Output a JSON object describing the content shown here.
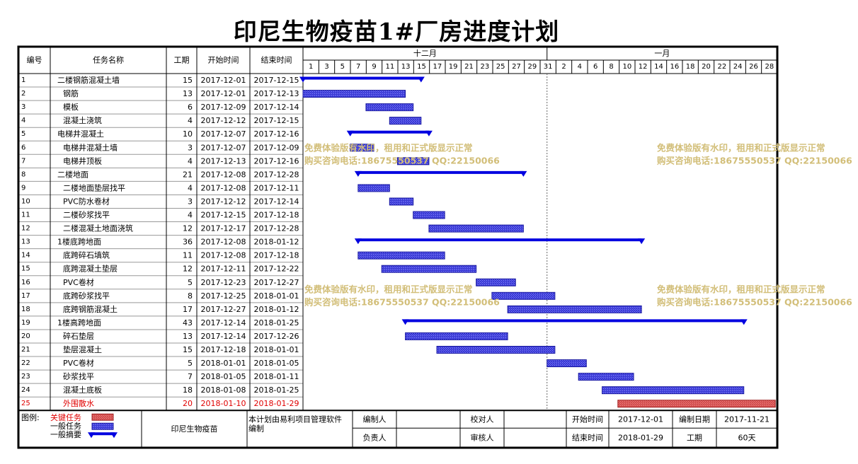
{
  "title": "印尼生物疫苗1#厂房进度计划",
  "header": {
    "id": "编号",
    "name": "任务名称",
    "duration": "工期",
    "start": "开始时间",
    "end": "结束时间",
    "month1": "十二月",
    "month2": "一月"
  },
  "day_labels": [
    "1",
    "3",
    "5",
    "7",
    "9",
    "11",
    "13",
    "15",
    "17",
    "19",
    "21",
    "23",
    "25",
    "27",
    "29",
    "31",
    "2",
    "4",
    "6",
    "8",
    "10",
    "12",
    "14",
    "16",
    "18",
    "20",
    "22",
    "24",
    "26",
    "28"
  ],
  "tasks": [
    {
      "id": "1",
      "name": "二楼钢筋混凝土墙",
      "duration": "15",
      "start": "2017-12-01",
      "end": "2017-12-15",
      "type": "summary"
    },
    {
      "id": "2",
      "name": "钢筋",
      "duration": "13",
      "start": "2017-12-01",
      "end": "2017-12-13",
      "type": "task"
    },
    {
      "id": "3",
      "name": "模板",
      "duration": "6",
      "start": "2017-12-09",
      "end": "2017-12-14",
      "type": "task"
    },
    {
      "id": "4",
      "name": "混凝土浇筑",
      "duration": "4",
      "start": "2017-12-12",
      "end": "2017-12-15",
      "type": "task"
    },
    {
      "id": "5",
      "name": "电梯井混凝土",
      "duration": "10",
      "start": "2017-12-07",
      "end": "2017-12-16",
      "type": "summary"
    },
    {
      "id": "6",
      "name": "电梯井混凝土墙",
      "duration": "3",
      "start": "2017-12-07",
      "end": "2017-12-09",
      "type": "task"
    },
    {
      "id": "7",
      "name": "电梯井顶板",
      "duration": "4",
      "start": "2017-12-13",
      "end": "2017-12-16",
      "type": "task"
    },
    {
      "id": "8",
      "name": "二楼地面",
      "duration": "21",
      "start": "2017-12-08",
      "end": "2017-12-28",
      "type": "summary"
    },
    {
      "id": "9",
      "name": "二楼地面垫层找平",
      "duration": "4",
      "start": "2017-12-08",
      "end": "2017-12-11",
      "type": "task"
    },
    {
      "id": "10",
      "name": "PVC防水卷材",
      "duration": "3",
      "start": "2017-12-12",
      "end": "2017-12-14",
      "type": "task"
    },
    {
      "id": "11",
      "name": "二楼砂浆找平",
      "duration": "4",
      "start": "2017-12-15",
      "end": "2017-12-18",
      "type": "task"
    },
    {
      "id": "12",
      "name": "二楼混凝土地面浇筑",
      "duration": "12",
      "start": "2017-12-17",
      "end": "2017-12-28",
      "type": "task"
    },
    {
      "id": "13",
      "name": "1楼底跨地面",
      "duration": "36",
      "start": "2017-12-08",
      "end": "2018-01-12",
      "type": "summary"
    },
    {
      "id": "14",
      "name": "底跨碎石填筑",
      "duration": "11",
      "start": "2017-12-08",
      "end": "2017-12-18",
      "type": "task"
    },
    {
      "id": "15",
      "name": "底跨混凝土垫层",
      "duration": "12",
      "start": "2017-12-11",
      "end": "2017-12-22",
      "type": "task"
    },
    {
      "id": "16",
      "name": "PVC卷材",
      "duration": "5",
      "start": "2017-12-23",
      "end": "2017-12-27",
      "type": "task"
    },
    {
      "id": "17",
      "name": "底跨砂浆找平",
      "duration": "8",
      "start": "2017-12-25",
      "end": "2018-01-01",
      "type": "task"
    },
    {
      "id": "18",
      "name": "底跨钢筋混凝土",
      "duration": "17",
      "start": "2017-12-27",
      "end": "2018-01-12",
      "type": "task"
    },
    {
      "id": "19",
      "name": "1楼高跨地面",
      "duration": "43",
      "start": "2017-12-14",
      "end": "2018-01-25",
      "type": "summary"
    },
    {
      "id": "20",
      "name": "碎石垫层",
      "duration": "13",
      "start": "2017-12-14",
      "end": "2017-12-26",
      "type": "task"
    },
    {
      "id": "21",
      "name": "垫层混凝土",
      "duration": "15",
      "start": "2017-12-18",
      "end": "2018-01-01",
      "type": "task"
    },
    {
      "id": "22",
      "name": "PVC卷材",
      "duration": "5",
      "start": "2018-01-01",
      "end": "2018-01-05",
      "type": "task"
    },
    {
      "id": "23",
      "name": "砂浆找平",
      "duration": "7",
      "start": "2018-01-05",
      "end": "2018-01-11",
      "type": "task"
    },
    {
      "id": "24",
      "name": "混凝土底板",
      "duration": "18",
      "start": "2018-01-08",
      "end": "2018-01-25",
      "type": "task"
    },
    {
      "id": "25",
      "name": "外围散水",
      "duration": "20",
      "start": "2018-01-10",
      "end": "2018-01-29",
      "type": "critical"
    }
  ],
  "footer": {
    "legend_label": "图例:",
    "legend_critical": "关键任务",
    "legend_task": "一般任务",
    "legend_summary": "一般摘要",
    "project_name": "印尼生物疫苗",
    "software_note_1": "本计划由易利项目管理软件",
    "software_note_2": "编制",
    "compiler_label": "编制人",
    "compiler_value": "",
    "checker_label": "校对人",
    "checker_value": "",
    "responsible_label": "负责人",
    "responsible_value": "",
    "reviewer_label": "审核人",
    "reviewer_value": "",
    "start_label": "开始时间",
    "start_value": "2017-12-01",
    "end_label": "结束时间",
    "end_value": "2018-01-29",
    "date_label": "编制日期",
    "date_value": "2017-11-21",
    "duration_label": "工期",
    "duration_value": "60天"
  },
  "watermark": {
    "line1": "免费体验版有水印，租用和正式版显示正常",
    "line2": "购买咨询电话:18675550537 QQ:22150066"
  },
  "colors": {
    "task": "#3b3bd4",
    "summary": "#0000e0",
    "critical": "#d25050",
    "critical_text": "#e00000",
    "watermark": "#d2be78"
  },
  "chart_data": {
    "type": "gantt",
    "title": "印尼生物疫苗1#厂房进度计划",
    "x_axis": {
      "start": "2017-12-01",
      "end": "2018-01-29",
      "months": [
        "十二月",
        "一月"
      ]
    },
    "tasks_ref": "tasks"
  }
}
